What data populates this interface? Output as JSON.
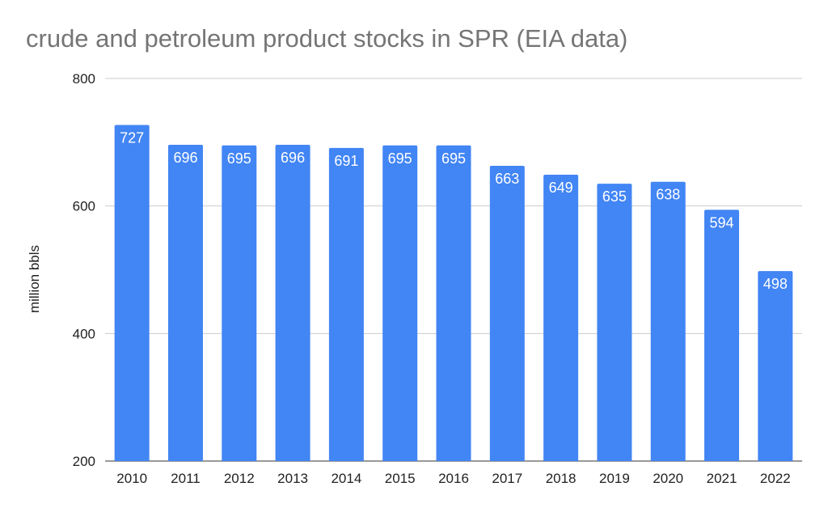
{
  "chart_data": {
    "type": "bar",
    "title": "crude and petroleum product stocks in SPR (EIA data)",
    "xlabel": "",
    "ylabel": "million bbls",
    "categories": [
      "2010",
      "2011",
      "2012",
      "2013",
      "2014",
      "2015",
      "2016",
      "2017",
      "2018",
      "2019",
      "2020",
      "2021",
      "2022"
    ],
    "values": [
      727,
      696,
      695,
      696,
      691,
      695,
      695,
      663,
      649,
      635,
      638,
      594,
      498
    ],
    "ylim": [
      200,
      800
    ],
    "yticks": [
      200,
      400,
      600,
      800
    ],
    "grid": true,
    "legend": "none",
    "bar_color": "#4285f4"
  }
}
